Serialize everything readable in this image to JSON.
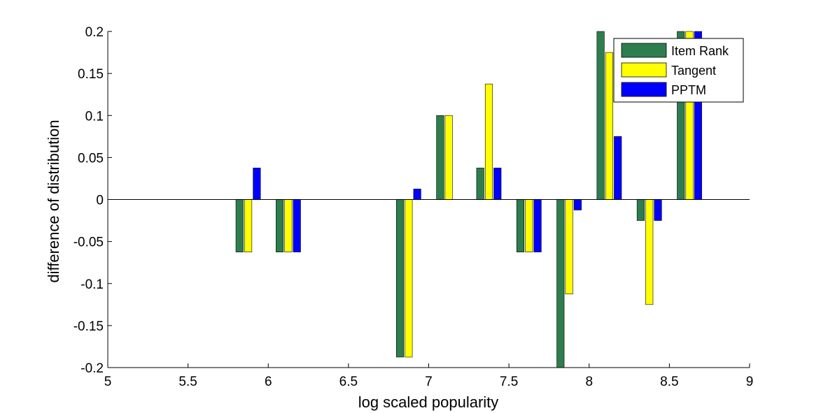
{
  "chart_data": {
    "type": "bar",
    "title": "",
    "xlabel": "log scaled popularity",
    "ylabel": "difference of distribution",
    "xlim": [
      5,
      9
    ],
    "ylim": [
      -0.2,
      0.2
    ],
    "xticks": [
      "5",
      "5.5",
      "6",
      "6.5",
      "7",
      "7.5",
      "8",
      "8.5",
      "9"
    ],
    "yticks": [
      "0.2",
      "0.15",
      "0.1",
      "0.05",
      "0",
      "-0.05",
      "-0.1",
      "-0.15",
      "-0.2"
    ],
    "grid": false,
    "legend_position": "top-right",
    "x": [
      5.875,
      6.125,
      6.875,
      7.125,
      7.375,
      7.625,
      7.875,
      8.125,
      8.375,
      8.625
    ],
    "series": [
      {
        "name": "Item Rank",
        "color": "#2e7d4f",
        "values": [
          -0.0625,
          -0.0625,
          -0.1875,
          0.1,
          0.0375,
          -0.0625,
          -0.2,
          0.2,
          -0.025,
          0.2
        ]
      },
      {
        "name": "Tangent",
        "color": "#ffff00",
        "values": [
          -0.0625,
          -0.0625,
          -0.1875,
          0.1,
          0.1375,
          -0.0625,
          -0.1125,
          0.175,
          -0.125,
          0.2
        ]
      },
      {
        "name": "PPTM",
        "color": "#0000ff",
        "values": [
          0.0375,
          -0.0625,
          0.0125,
          0,
          0.0375,
          -0.0625,
          -0.0125,
          0.075,
          -0.025,
          0.2
        ]
      }
    ]
  }
}
